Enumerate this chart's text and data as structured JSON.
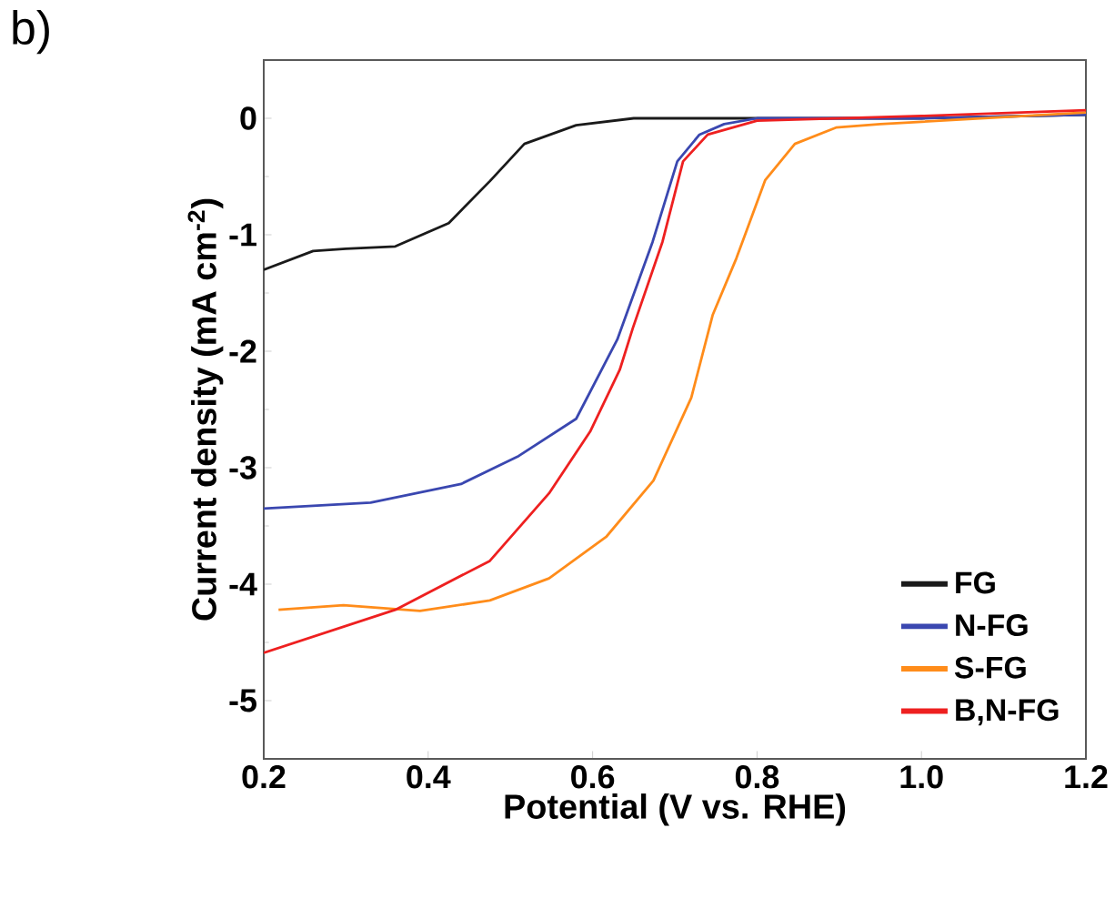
{
  "chart_data": {
    "type": "line",
    "xlabel": "Potential (V vs. RHE)",
    "ylabel": "Current density (mA cm$^{-2}$)",
    "annotations": [
      "b)"
    ],
    "xlim": [
      0.2,
      1.2
    ],
    "ylim": [
      -5.5,
      0.5
    ],
    "xticks": [
      {
        "value": 0.2,
        "label": "0.2"
      },
      {
        "value": 0.4,
        "label": "0.4"
      },
      {
        "value": 0.6,
        "label": "0.6"
      },
      {
        "value": 0.8,
        "label": "0.8"
      },
      {
        "value": 1.0,
        "label": "1.0"
      },
      {
        "value": 1.2,
        "label": "1.2"
      }
    ],
    "yticks": [
      -5,
      -4,
      -3,
      -2,
      -1,
      0
    ],
    "legend": "bottom right",
    "grid": false,
    "marker": "none",
    "line_style": "solid",
    "series": [
      {
        "name": "FG",
        "color": "#1a1a1a",
        "x": [
          0.2,
          0.26,
          0.3,
          0.36,
          0.425,
          0.475,
          0.517,
          0.58,
          0.65,
          0.8,
          1.0,
          1.2
        ],
        "values": [
          -1.3,
          -1.14,
          -1.12,
          -1.1,
          -0.9,
          -0.54,
          -0.22,
          -0.06,
          0,
          0,
          0,
          0.03
        ]
      },
      {
        "name": "N-FG",
        "color": "#3a47b0",
        "x": [
          0.2,
          0.33,
          0.44,
          0.51,
          0.58,
          0.63,
          0.673,
          0.703,
          0.73,
          0.76,
          0.8,
          1.0,
          1.2
        ],
        "values": [
          -3.35,
          -3.3,
          -3.14,
          -2.9,
          -2.58,
          -1.9,
          -1.06,
          -0.37,
          -0.14,
          -0.05,
          0,
          0,
          0.03
        ]
      },
      {
        "name": "S-FG",
        "color": "#ff8c1a",
        "x": [
          0.218,
          0.297,
          0.39,
          0.475,
          0.547,
          0.617,
          0.674,
          0.72,
          0.746,
          0.775,
          0.81,
          0.846,
          0.896,
          0.95,
          1.2
        ],
        "values": [
          -4.22,
          -4.18,
          -4.23,
          -4.14,
          -3.95,
          -3.59,
          -3.11,
          -2.4,
          -1.69,
          -1.2,
          -0.53,
          -0.22,
          -0.08,
          -0.05,
          0.05
        ]
      },
      {
        "name": "B,N-FG",
        "color": "#ee2020",
        "x": [
          0.2,
          0.36,
          0.475,
          0.547,
          0.597,
          0.633,
          0.649,
          0.685,
          0.71,
          0.74,
          0.8,
          1.0,
          1.2
        ],
        "values": [
          -4.59,
          -4.22,
          -3.8,
          -3.22,
          -2.69,
          -2.16,
          -1.8,
          -1.06,
          -0.37,
          -0.14,
          -0.02,
          0.02,
          0.07
        ]
      }
    ]
  }
}
